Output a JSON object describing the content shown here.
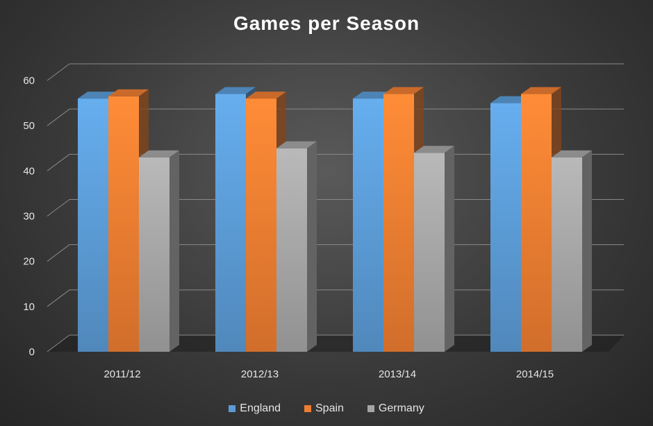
{
  "chart_data": {
    "type": "bar",
    "title": "Games per Season",
    "xlabel": "",
    "ylabel": "",
    "ylim": [
      0,
      60
    ],
    "yticks": [
      0,
      10,
      20,
      30,
      40,
      50,
      60
    ],
    "grid": true,
    "legend_position": "bottom",
    "categories": [
      "2011/12",
      "2012/13",
      "2013/14",
      "2014/15"
    ],
    "series": [
      {
        "name": "England",
        "color": "#5b9bd5",
        "values": [
          56,
          57,
          56,
          55
        ]
      },
      {
        "name": "Spain",
        "color": "#ed7d31",
        "values": [
          56.5,
          56,
          57,
          57
        ]
      },
      {
        "name": "Germany",
        "color": "#a5a5a5",
        "values": [
          43,
          45,
          44,
          43
        ]
      }
    ]
  }
}
